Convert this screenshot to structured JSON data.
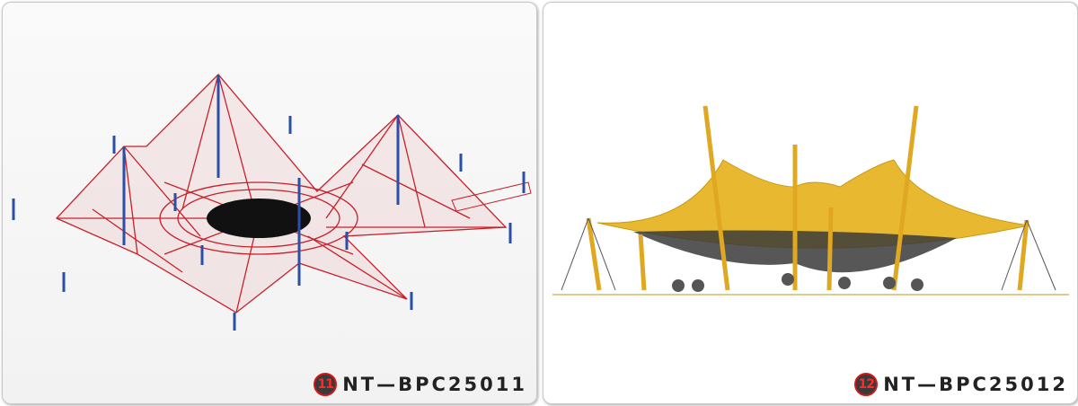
{
  "items": [
    {
      "number": "11",
      "code": "NT—BPC25011"
    },
    {
      "number": "12",
      "code": "NT—BPC25012"
    }
  ]
}
